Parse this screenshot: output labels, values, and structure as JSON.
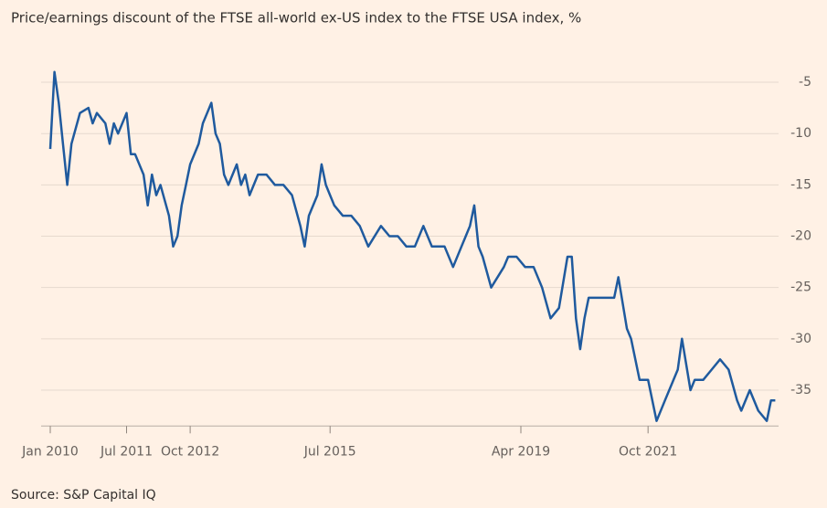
{
  "chart_data": {
    "type": "line",
    "title": "Price/earnings discount of the FTSE all-world ex-US index to the FTSE USA index, %",
    "source": "Source: S&P Capital IQ",
    "color": "#1f5a9e",
    "x": [
      "2010-01",
      "2010-02",
      "2010-03",
      "2010-04",
      "2010-05",
      "2010-06",
      "2010-08",
      "2010-10",
      "2010-11",
      "2010-12",
      "2011-02",
      "2011-03",
      "2011-04",
      "2011-05",
      "2011-07",
      "2011-08",
      "2011-09",
      "2011-11",
      "2011-12",
      "2012-01",
      "2012-02",
      "2012-03",
      "2012-05",
      "2012-06",
      "2012-07",
      "2012-08",
      "2012-09",
      "2012-10",
      "2012-12",
      "2013-01",
      "2013-02",
      "2013-03",
      "2013-04",
      "2013-05",
      "2013-06",
      "2013-07",
      "2013-08",
      "2013-09",
      "2013-10",
      "2013-11",
      "2013-12",
      "2014-02",
      "2014-04",
      "2014-06",
      "2014-08",
      "2014-10",
      "2014-12",
      "2015-01",
      "2015-02",
      "2015-04",
      "2015-05",
      "2015-06",
      "2015-07",
      "2015-08",
      "2015-10",
      "2015-12",
      "2016-02",
      "2016-04",
      "2016-07",
      "2016-09",
      "2016-11",
      "2017-01",
      "2017-03",
      "2017-05",
      "2017-07",
      "2017-10",
      "2017-12",
      "2018-02",
      "2018-04",
      "2018-05",
      "2018-06",
      "2018-07",
      "2018-09",
      "2018-12",
      "2019-01",
      "2019-03",
      "2019-05",
      "2019-07",
      "2019-09",
      "2019-11",
      "2020-01",
      "2020-03",
      "2020-04",
      "2020-05",
      "2020-06",
      "2020-07",
      "2020-08",
      "2020-10",
      "2020-12",
      "2021-02",
      "2021-03",
      "2021-05",
      "2021-06",
      "2021-08",
      "2021-10",
      "2021-12",
      "2022-02",
      "2022-05",
      "2022-06",
      "2022-08",
      "2022-09",
      "2022-11",
      "2023-01",
      "2023-03",
      "2023-05",
      "2023-07",
      "2023-08",
      "2023-10",
      "2023-12",
      "2024-02",
      "2024-03",
      "2024-04"
    ],
    "values": [
      -11.5,
      -4,
      -7,
      -11,
      -15,
      -11,
      -8,
      -7.5,
      -9,
      -8,
      -9,
      -11,
      -9,
      -10,
      -8,
      -12,
      -12,
      -14,
      -17,
      -14,
      -16,
      -15,
      -18,
      -21,
      -20,
      -17,
      -15,
      -13,
      -11,
      -9,
      -8,
      -7,
      -10,
      -11,
      -14,
      -15,
      -14,
      -13,
      -15,
      -14,
      -16,
      -14,
      -14,
      -15,
      -15,
      -16,
      -19,
      -21,
      -18,
      -16,
      -13,
      -15,
      -16,
      -17,
      -18,
      -18,
      -19,
      -21,
      -19,
      -20,
      -20,
      -21,
      -21,
      -19,
      -21,
      -21,
      -23,
      -21,
      -19,
      -17,
      -21,
      -22,
      -25,
      -23,
      -22,
      -22,
      -23,
      -23,
      -25,
      -28,
      -27,
      -22,
      -22,
      -28,
      -31,
      -28,
      -26,
      -26,
      -26,
      -26,
      -24,
      -29,
      -30,
      -34,
      -34,
      -38,
      -36,
      -33,
      -30,
      -35,
      -34,
      -34,
      -33,
      -32,
      -33,
      -36,
      -37,
      -35,
      -37,
      -38,
      -36,
      -36
    ],
    "xlim": [
      "2010-01",
      "2024-05"
    ],
    "xticks": [
      {
        "value": "2010-01",
        "label": "Jan 2010"
      },
      {
        "value": "2011-07",
        "label": "Jul 2011"
      },
      {
        "value": "2012-10",
        "label": "Oct 2012"
      },
      {
        "value": "2015-07",
        "label": "Jul 2015"
      },
      {
        "value": "2019-04",
        "label": "Apr 2019"
      },
      {
        "value": "2021-10",
        "label": "Oct 2021"
      }
    ],
    "ylim": [
      -38.5,
      -3.5
    ],
    "yticks": [
      -5,
      -10,
      -15,
      -20,
      -25,
      -30,
      -35
    ],
    "grid": true
  }
}
